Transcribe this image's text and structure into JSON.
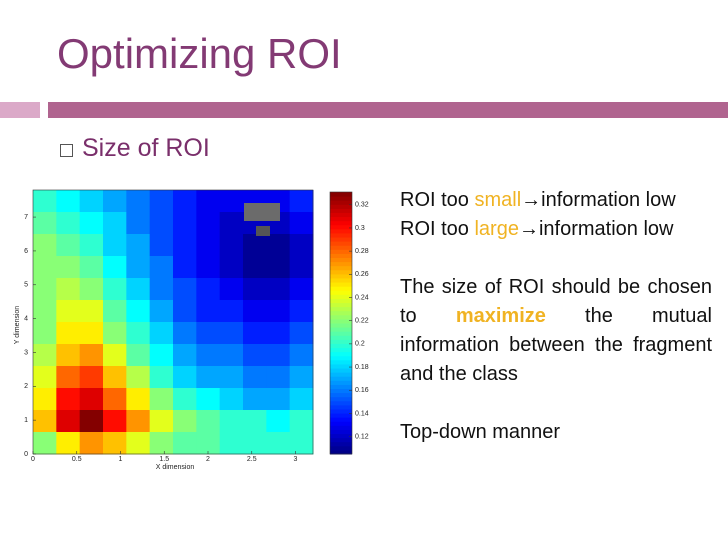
{
  "slide": {
    "title": "Optimizing ROI",
    "bullet": "Size of ROI",
    "paragraphs": [
      [
        "ROI too ",
        "small",
        "→information low"
      ],
      [
        "ROI too ",
        "large",
        "→information low"
      ],
      [
        "The size of ROI should be chosen to ",
        "maximize",
        " the mutual information between the fragment and the class"
      ],
      [
        "Top-down manner"
      ]
    ]
  },
  "chart_data": {
    "type": "heatmap",
    "xlabel": "X dimension",
    "ylabel": "Y dimension",
    "xlim": [
      0,
      3.2
    ],
    "ylim": [
      0,
      7.8
    ],
    "xticks": [
      0,
      0.5,
      1,
      1.5,
      2,
      2.5,
      3
    ],
    "yticks": [
      0,
      1,
      2,
      3,
      4,
      5,
      6,
      7
    ],
    "colormap": "jet",
    "clim": [
      0.105,
      0.331
    ],
    "cticks": [
      0.12,
      0.14,
      0.16,
      0.18,
      0.2,
      0.22,
      0.24,
      0.26,
      0.28,
      0.3,
      0.32
    ],
    "z": [
      [
        0.2,
        0.19,
        0.18,
        0.17,
        0.16,
        0.15,
        0.14,
        0.13,
        0.13,
        0.13,
        0.13,
        0.14
      ],
      [
        0.21,
        0.2,
        0.19,
        0.18,
        0.16,
        0.15,
        0.14,
        0.13,
        0.12,
        0.12,
        0.12,
        0.13
      ],
      [
        0.22,
        0.21,
        0.2,
        0.18,
        0.17,
        0.15,
        0.14,
        0.13,
        0.12,
        0.11,
        0.11,
        0.12
      ],
      [
        0.22,
        0.22,
        0.21,
        0.19,
        0.17,
        0.16,
        0.14,
        0.13,
        0.12,
        0.11,
        0.11,
        0.12
      ],
      [
        0.22,
        0.23,
        0.22,
        0.2,
        0.18,
        0.16,
        0.15,
        0.14,
        0.13,
        0.12,
        0.12,
        0.13
      ],
      [
        0.22,
        0.24,
        0.24,
        0.21,
        0.19,
        0.17,
        0.15,
        0.14,
        0.14,
        0.13,
        0.13,
        0.14
      ],
      [
        0.22,
        0.25,
        0.25,
        0.22,
        0.2,
        0.18,
        0.16,
        0.15,
        0.15,
        0.14,
        0.14,
        0.15
      ],
      [
        0.23,
        0.26,
        0.27,
        0.24,
        0.21,
        0.19,
        0.17,
        0.16,
        0.16,
        0.15,
        0.15,
        0.16
      ],
      [
        0.24,
        0.28,
        0.29,
        0.26,
        0.23,
        0.2,
        0.18,
        0.17,
        0.17,
        0.16,
        0.16,
        0.17
      ],
      [
        0.25,
        0.3,
        0.31,
        0.28,
        0.25,
        0.22,
        0.2,
        0.19,
        0.18,
        0.17,
        0.17,
        0.18
      ],
      [
        0.26,
        0.31,
        0.33,
        0.3,
        0.27,
        0.24,
        0.22,
        0.21,
        0.2,
        0.2,
        0.19,
        0.2
      ],
      [
        0.22,
        0.25,
        0.27,
        0.26,
        0.24,
        0.22,
        0.21,
        0.21,
        0.2,
        0.2,
        0.2,
        0.2
      ]
    ]
  }
}
